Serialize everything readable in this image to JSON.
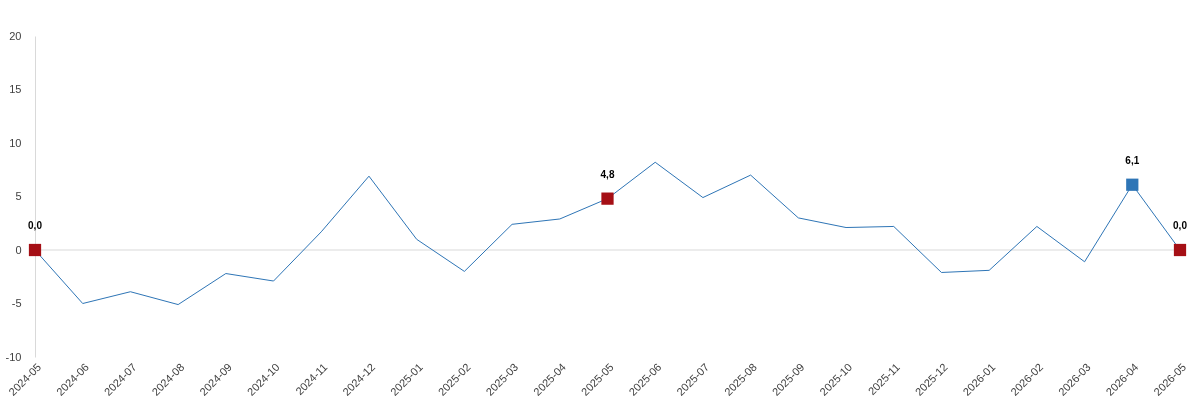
{
  "chart_data": {
    "type": "line",
    "categories": [
      "2024-05",
      "2024-06",
      "2024-07",
      "2024-08",
      "2024-09",
      "2024-10",
      "2024-11",
      "2024-12",
      "2025-01",
      "2025-02",
      "2025-03",
      "2025-04",
      "2025-05",
      "2025-06",
      "2025-07",
      "2025-08",
      "2025-09",
      "2025-10",
      "2025-11",
      "2025-12",
      "2026-01",
      "2026-02",
      "2026-03",
      "2026-04",
      "2026-05"
    ],
    "ylim": [
      -10,
      20
    ],
    "yticks": [
      -10,
      -5,
      0,
      5,
      10,
      15,
      20
    ],
    "grid": false,
    "ref_lines": [
      {
        "axis": "y",
        "value": 0,
        "color": "#d9d9d9"
      }
    ],
    "series": [
      {
        "color": "#2e75b6",
        "marker": "none",
        "values": [
          0,
          -5.0,
          -3.9,
          -5.1,
          -2.2,
          -2.9,
          1.7,
          6.9,
          1.0,
          -2.0,
          2.4,
          2.9,
          4.8,
          8.2,
          4.9,
          7.0,
          3.0,
          2.1,
          2.2,
          -2.1,
          -1.9,
          2.2,
          -1.1,
          6.1,
          0
        ]
      },
      {
        "type": "scatter",
        "marker": "square",
        "values": [
          0,
          null,
          null,
          null,
          null,
          null,
          null,
          null,
          null,
          null,
          null,
          null,
          4.8,
          null,
          null,
          null,
          null,
          null,
          null,
          null,
          null,
          null,
          null,
          6.1,
          0
        ],
        "colors": [
          "#a50f15",
          null,
          null,
          null,
          null,
          null,
          null,
          null,
          null,
          null,
          null,
          null,
          "#a50f15",
          null,
          null,
          null,
          null,
          null,
          null,
          null,
          null,
          null,
          null,
          "#2e75b6",
          "#a50f15"
        ],
        "value_labels": [
          "0,0",
          null,
          null,
          null,
          null,
          null,
          null,
          null,
          null,
          null,
          null,
          null,
          "4,8",
          null,
          null,
          null,
          null,
          null,
          null,
          null,
          null,
          null,
          null,
          "6,1",
          "0,0"
        ]
      }
    ]
  }
}
